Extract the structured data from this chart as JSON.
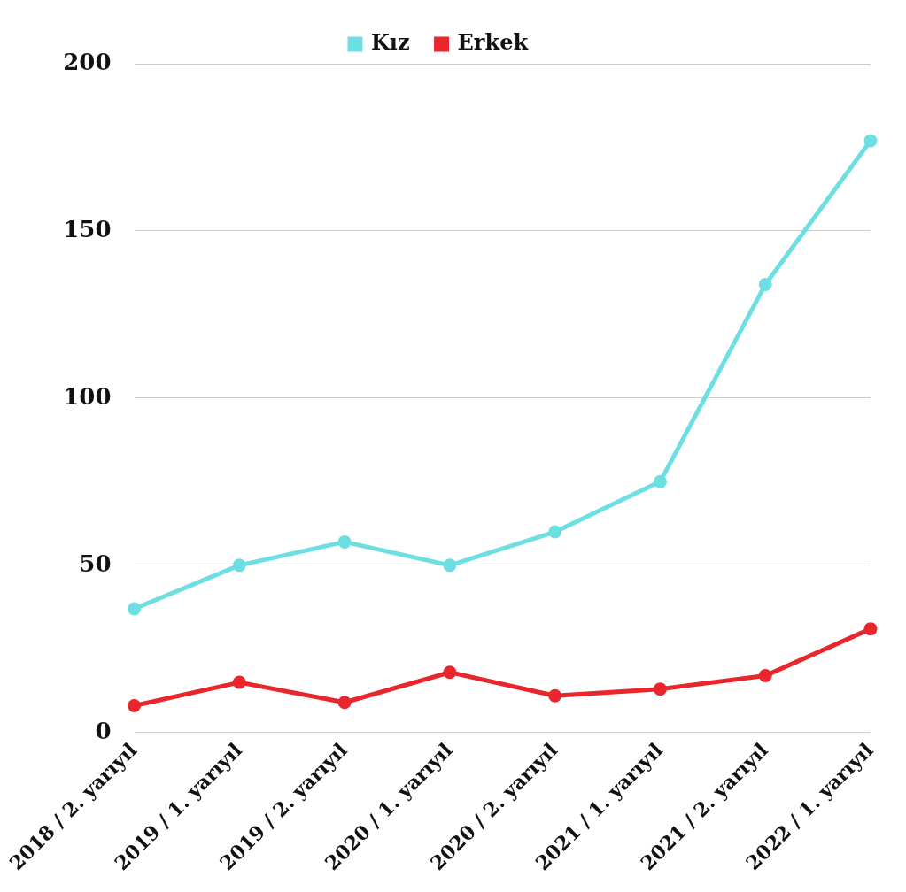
{
  "chart_data": {
    "type": "line",
    "categories": [
      "2018 / 2. yarıyıl",
      "2019 / 1. yarıyıl",
      "2019 / 2. yarıyıl",
      "2020 / 1. yarıyıl",
      "2020 / 2. yarıyıl",
      "2021 / 1. yarıyıl",
      "2021 / 2. yarıyıl",
      "2022 / 1. yarıyıl"
    ],
    "series": [
      {
        "name": "Kız",
        "color": "#6ddfe3",
        "values": [
          37,
          50,
          57,
          50,
          60,
          75,
          134,
          177
        ]
      },
      {
        "name": "Erkek",
        "color": "#e8262b",
        "values": [
          8,
          15,
          9,
          18,
          11,
          13,
          17,
          31
        ]
      }
    ],
    "ylim": [
      0,
      200
    ],
    "yticks": [
      0,
      50,
      100,
      150,
      200
    ],
    "grid": "y",
    "legend": "top",
    "marker": "circle",
    "line_style": "solid"
  }
}
